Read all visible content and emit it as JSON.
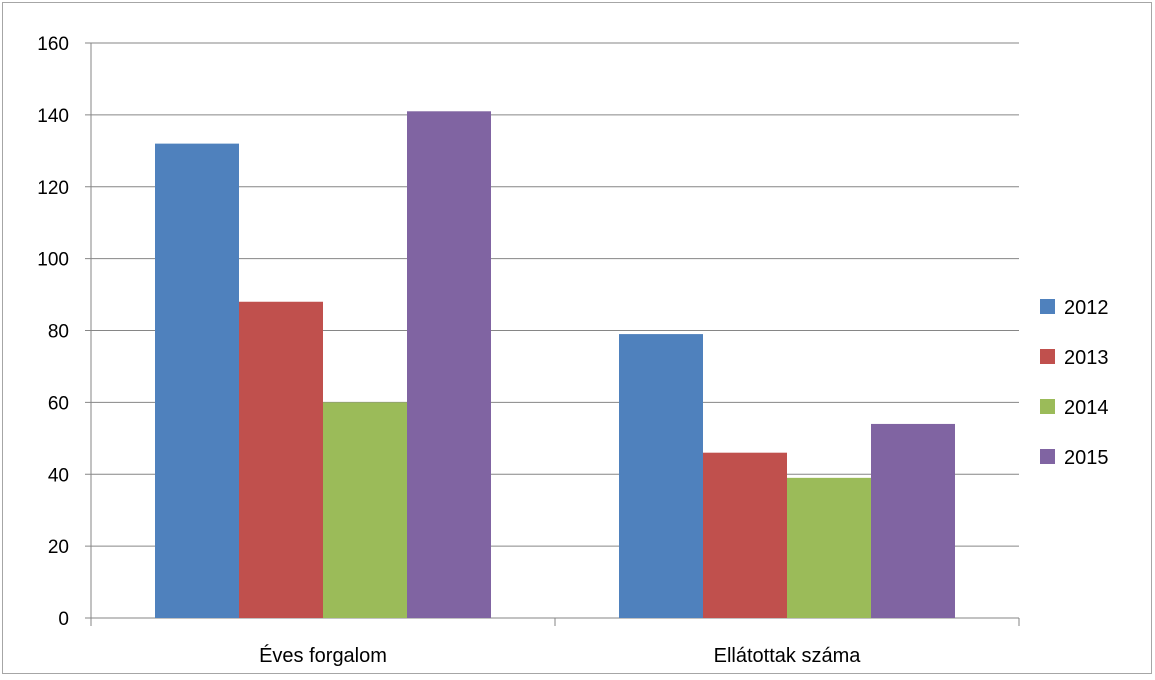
{
  "chart_data": {
    "type": "bar",
    "categories": [
      "Éves forgalom",
      "Ellátottak száma"
    ],
    "series": [
      {
        "name": "2012",
        "values": [
          132,
          79
        ],
        "color": "#4f81bd"
      },
      {
        "name": "2013",
        "values": [
          88,
          46
        ],
        "color": "#c0504d"
      },
      {
        "name": "2014",
        "values": [
          60,
          39
        ],
        "color": "#9bbb59"
      },
      {
        "name": "2015",
        "values": [
          141,
          54
        ],
        "color": "#8064a2"
      }
    ],
    "yticks": [
      "0",
      "20",
      "40",
      "60",
      "80",
      "100",
      "120",
      "140",
      "160"
    ],
    "ylim": [
      0,
      160
    ],
    "grid": true,
    "legend": "right"
  }
}
